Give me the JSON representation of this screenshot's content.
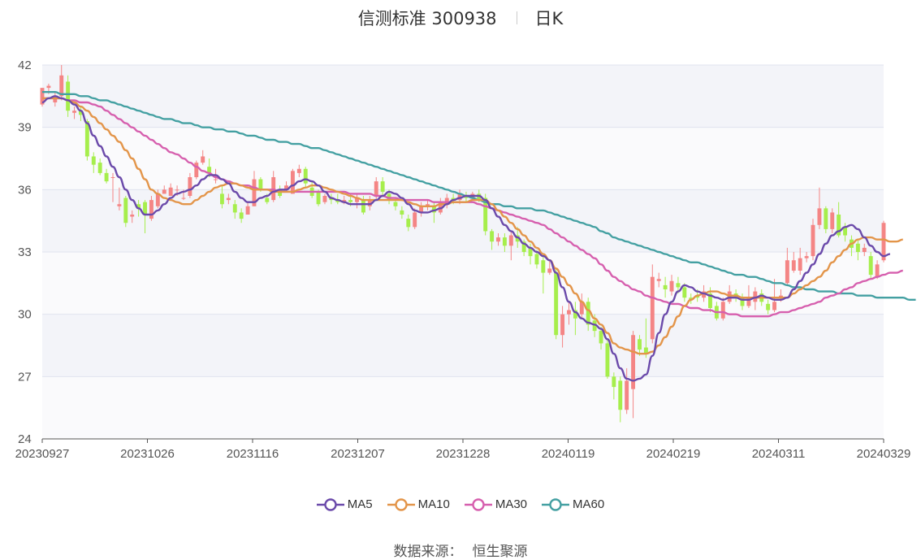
{
  "header": {
    "title": "信测标准 300938",
    "period": "日K"
  },
  "source": {
    "label": "数据来源：",
    "value": "恒生聚源"
  },
  "colors": {
    "up": "#f48585",
    "down": "#a6ee4c",
    "ma5": "#6b4aaa",
    "ma10": "#e3954a",
    "ma30": "#d65fae",
    "ma60": "#44a0a2"
  },
  "chart_data": {
    "type": "candlestick",
    "ylim": [
      24,
      42
    ],
    "y_ticks": [
      24,
      27,
      30,
      33,
      36,
      39,
      42
    ],
    "x_tick_labels": [
      "20230927",
      "20231026",
      "20231116",
      "20231207",
      "20231228",
      "20240119",
      "20240219",
      "20240311",
      "20240329"
    ],
    "legend": [
      "MA5",
      "MA10",
      "MA30",
      "MA60"
    ],
    "legend_position": "bottom",
    "candles": [
      [
        40.1,
        40.9,
        40.7,
        40.0
      ],
      [
        40.9,
        41.0,
        41.1,
        40.6
      ],
      [
        40.2,
        40.5,
        40.7,
        40.0
      ],
      [
        40.5,
        41.5,
        42.0,
        40.3
      ],
      [
        41.2,
        39.8,
        41.5,
        39.5
      ],
      [
        39.7,
        39.8,
        40.0,
        39.4
      ],
      [
        39.8,
        39.6,
        40.0,
        39.3
      ],
      [
        39.3,
        37.6,
        39.4,
        37.4
      ],
      [
        37.6,
        37.2,
        37.8,
        36.8
      ],
      [
        37.3,
        36.8,
        37.5,
        36.7
      ],
      [
        36.8,
        36.4,
        37.0,
        36.3
      ],
      [
        36.6,
        36.6,
        36.8,
        35.4
      ],
      [
        35.2,
        35.3,
        36.1,
        35.0
      ],
      [
        35.6,
        34.4,
        35.7,
        34.2
      ],
      [
        34.7,
        34.8,
        35.0,
        34.4
      ],
      [
        35.3,
        35.1,
        35.5,
        34.7
      ],
      [
        35.4,
        34.8,
        35.5,
        33.9
      ],
      [
        34.6,
        35.5,
        35.7,
        34.5
      ],
      [
        35.2,
        35.8,
        36.0,
        35.1
      ],
      [
        35.8,
        36.0,
        36.2,
        35.8
      ],
      [
        35.7,
        36.1,
        36.3,
        35.7
      ],
      [
        36.0,
        36.0,
        36.2,
        35.7
      ],
      [
        35.6,
        35.6,
        36.0,
        35.5
      ],
      [
        35.7,
        36.6,
        36.8,
        35.6
      ],
      [
        36.6,
        37.3,
        37.4,
        36.5
      ],
      [
        37.3,
        37.6,
        37.9,
        37.2
      ],
      [
        37.1,
        36.8,
        37.5,
        36.6
      ],
      [
        36.5,
        36.5,
        37.0,
        36.3
      ],
      [
        35.8,
        35.3,
        36.2,
        35.1
      ],
      [
        35.5,
        35.6,
        35.8,
        35.3
      ],
      [
        35.3,
        34.9,
        35.5,
        34.6
      ],
      [
        34.9,
        34.6,
        35.1,
        34.4
      ],
      [
        34.8,
        35.2,
        35.4,
        34.8
      ],
      [
        35.2,
        36.5,
        36.9,
        35.2
      ],
      [
        36.5,
        36.0,
        36.6,
        35.9
      ],
      [
        35.6,
        35.4,
        35.8,
        35.3
      ],
      [
        35.5,
        36.6,
        36.9,
        35.4
      ],
      [
        36.0,
        35.7,
        36.2,
        35.6
      ],
      [
        36.0,
        36.2,
        36.4,
        35.9
      ],
      [
        35.8,
        36.9,
        37.0,
        35.8
      ],
      [
        36.8,
        37.0,
        37.2,
        36.6
      ],
      [
        37.0,
        36.3,
        37.1,
        36.1
      ],
      [
        36.1,
        35.7,
        36.4,
        35.6
      ],
      [
        35.9,
        35.3,
        36.0,
        35.2
      ],
      [
        35.4,
        35.7,
        35.8,
        35.3
      ],
      [
        35.6,
        35.5,
        35.8,
        35.3
      ],
      [
        35.5,
        35.4,
        35.8,
        35.3
      ],
      [
        35.4,
        35.5,
        35.7,
        35.3
      ],
      [
        35.5,
        35.4,
        35.8,
        35.2
      ],
      [
        35.4,
        35.6,
        35.8,
        35.1
      ],
      [
        35.5,
        34.9,
        35.7,
        34.8
      ],
      [
        35.2,
        35.5,
        35.7,
        35.0
      ],
      [
        35.7,
        36.4,
        36.6,
        35.5
      ],
      [
        36.4,
        35.9,
        36.6,
        35.7
      ],
      [
        35.8,
        35.5,
        36.0,
        35.3
      ],
      [
        35.4,
        35.2,
        35.6,
        35.0
      ],
      [
        35.0,
        34.8,
        35.2,
        34.6
      ],
      [
        34.6,
        34.2,
        34.8,
        34.0
      ],
      [
        34.2,
        34.9,
        35.1,
        34.1
      ],
      [
        34.9,
        35.2,
        35.4,
        34.7
      ],
      [
        35.2,
        35.3,
        35.5,
        35.0
      ],
      [
        35.2,
        34.9,
        35.4,
        34.4
      ],
      [
        34.9,
        35.4,
        35.6,
        34.8
      ],
      [
        35.3,
        35.6,
        35.8,
        35.1
      ],
      [
        35.6,
        35.5,
        35.8,
        35.3
      ],
      [
        35.5,
        35.8,
        36.0,
        35.3
      ],
      [
        35.7,
        35.6,
        35.9,
        35.4
      ],
      [
        35.6,
        35.8,
        35.9,
        35.5
      ],
      [
        35.8,
        35.5,
        36.0,
        35.4
      ],
      [
        35.6,
        34.0,
        35.8,
        33.8
      ],
      [
        34.0,
        33.5,
        34.1,
        33.1
      ],
      [
        33.5,
        33.7,
        33.9,
        33.3
      ],
      [
        33.7,
        33.3,
        33.9,
        33.0
      ],
      [
        33.3,
        33.8,
        34.0,
        32.6
      ],
      [
        33.8,
        33.5,
        34.2,
        33.2
      ],
      [
        33.5,
        33.0,
        33.6,
        32.8
      ],
      [
        33.2,
        32.8,
        33.4,
        32.4
      ],
      [
        32.9,
        32.4,
        33.1,
        32.2
      ],
      [
        32.6,
        32.0,
        32.8,
        31.0
      ],
      [
        32.0,
        32.2,
        32.6,
        31.9
      ],
      [
        32.0,
        29.0,
        32.2,
        28.8
      ],
      [
        29.0,
        30.0,
        30.4,
        28.4
      ],
      [
        30.0,
        30.2,
        30.6,
        29.5
      ],
      [
        30.2,
        29.8,
        30.6,
        29.0
      ],
      [
        30.0,
        30.6,
        31.0,
        29.8
      ],
      [
        30.6,
        29.5,
        30.8,
        29.2
      ],
      [
        29.7,
        29.2,
        30.0,
        28.9
      ],
      [
        29.2,
        28.6,
        29.4,
        28.3
      ],
      [
        28.6,
        27.0,
        28.8,
        26.9
      ],
      [
        27.0,
        26.5,
        27.2,
        25.9
      ],
      [
        26.8,
        25.4,
        27.0,
        24.8
      ],
      [
        25.4,
        26.8,
        27.4,
        25.2
      ],
      [
        26.4,
        29.0,
        29.2,
        25.0
      ],
      [
        28.8,
        28.3,
        29.0,
        28.0
      ],
      [
        28.4,
        28.1,
        29.8,
        27.9
      ],
      [
        28.8,
        31.8,
        32.4,
        28.6
      ],
      [
        31.6,
        31.7,
        32.0,
        31.3
      ],
      [
        31.4,
        31.2,
        31.8,
        30.8
      ],
      [
        31.1,
        31.6,
        31.9,
        30.9
      ],
      [
        31.5,
        31.3,
        31.8,
        31.0
      ],
      [
        31.3,
        30.8,
        31.5,
        30.6
      ],
      [
        30.8,
        30.7,
        31.0,
        30.5
      ],
      [
        30.9,
        30.8,
        31.2,
        30.6
      ],
      [
        30.8,
        31.1,
        31.4,
        30.6
      ],
      [
        31.0,
        30.3,
        31.3,
        30.1
      ],
      [
        30.4,
        29.8,
        30.6,
        29.7
      ],
      [
        29.8,
        30.6,
        30.8,
        29.7
      ],
      [
        30.6,
        31.1,
        31.4,
        30.5
      ],
      [
        31.0,
        30.8,
        31.2,
        30.6
      ],
      [
        30.8,
        30.4,
        31.0,
        30.2
      ],
      [
        30.4,
        30.8,
        31.4,
        30.3
      ],
      [
        30.6,
        31.1,
        31.3,
        30.2
      ],
      [
        31.0,
        30.6,
        31.2,
        30.4
      ],
      [
        30.5,
        30.2,
        30.7,
        30.0
      ],
      [
        30.2,
        30.6,
        31.7,
        30.1
      ],
      [
        30.8,
        30.9,
        31.2,
        30.6
      ],
      [
        31.5,
        32.6,
        33.2,
        31.4
      ],
      [
        32.1,
        32.6,
        33.0,
        32.0
      ],
      [
        32.1,
        32.7,
        33.2,
        31.9
      ],
      [
        32.7,
        32.8,
        33.0,
        32.5
      ],
      [
        32.8,
        34.3,
        34.6,
        32.6
      ],
      [
        34.3,
        35.1,
        36.1,
        34.1
      ],
      [
        35.1,
        34.1,
        35.2,
        33.9
      ],
      [
        34.1,
        34.9,
        35.1,
        33.9
      ],
      [
        34.8,
        33.8,
        35.4,
        33.7
      ],
      [
        34.2,
        33.8,
        34.4,
        33.5
      ],
      [
        33.6,
        33.2,
        33.8,
        32.8
      ],
      [
        33.4,
        33.0,
        33.6,
        32.6
      ],
      [
        33.0,
        33.2,
        33.4,
        32.8
      ],
      [
        32.8,
        31.9,
        33.0,
        31.7
      ],
      [
        31.8,
        32.4,
        32.6,
        31.7
      ],
      [
        32.6,
        34.4,
        34.5,
        32.5
      ]
    ],
    "ma5": [
      40.2,
      40.4,
      40.5,
      40.4,
      40.3,
      40.1,
      39.8,
      39.2,
      38.6,
      38.1,
      37.6,
      37.1,
      36.6,
      36.0,
      35.5,
      35.1,
      34.8,
      34.8,
      35.0,
      35.3,
      35.6,
      35.8,
      35.9,
      36.0,
      36.2,
      36.5,
      36.7,
      36.7,
      36.5,
      36.3,
      35.9,
      35.6,
      35.4,
      35.4,
      35.6,
      35.7,
      35.9,
      36.0,
      36.0,
      36.2,
      36.4,
      36.5,
      36.4,
      36.2,
      35.9,
      35.6,
      35.5,
      35.4,
      35.3,
      35.3,
      35.3,
      35.3,
      35.5,
      35.7,
      35.9,
      35.8,
      35.6,
      35.3,
      35.0,
      34.9,
      34.9,
      35.0,
      35.1,
      35.3,
      35.5,
      35.6,
      35.7,
      35.7,
      35.7,
      35.5,
      35.1,
      34.7,
      34.3,
      34.0,
      33.7,
      33.4,
      33.2,
      33.0,
      32.8,
      32.6,
      32.0,
      31.3,
      30.6,
      30.1,
      29.8,
      29.6,
      29.5,
      29.3,
      28.8,
      28.1,
      27.4,
      26.9,
      26.8,
      26.9,
      27.1,
      28.0,
      29.1,
      30.0,
      30.6,
      31.1,
      31.4,
      31.3,
      31.1,
      31.0,
      30.9,
      30.8,
      30.7,
      30.8,
      30.8,
      30.7,
      30.7,
      30.8,
      30.9,
      30.8,
      30.7,
      30.7,
      30.8,
      31.2,
      31.6,
      32.0,
      32.4,
      32.9,
      33.4,
      33.8,
      34.0,
      34.2,
      34.3,
      34.1,
      33.7,
      33.3,
      33.0,
      32.8,
      32.9
    ],
    "ma10": [
      40.4,
      40.4,
      40.4,
      40.4,
      40.3,
      40.2,
      40.0,
      39.8,
      39.5,
      39.2,
      38.9,
      38.6,
      38.3,
      37.9,
      37.5,
      37.0,
      36.5,
      36.0,
      35.8,
      35.6,
      35.5,
      35.4,
      35.3,
      35.3,
      35.5,
      35.7,
      35.9,
      36.1,
      36.2,
      36.3,
      36.3,
      36.2,
      36.1,
      36.0,
      36.0,
      36.0,
      35.9,
      35.9,
      35.9,
      35.9,
      36.0,
      36.1,
      36.2,
      36.2,
      36.1,
      36.0,
      35.9,
      35.8,
      35.7,
      35.6,
      35.5,
      35.5,
      35.5,
      35.5,
      35.5,
      35.5,
      35.5,
      35.4,
      35.3,
      35.2,
      35.2,
      35.2,
      35.3,
      35.3,
      35.4,
      35.4,
      35.4,
      35.5,
      35.5,
      35.5,
      35.3,
      35.0,
      34.7,
      34.4,
      34.1,
      33.8,
      33.5,
      33.2,
      32.9,
      32.6,
      32.2,
      31.8,
      31.4,
      31.0,
      30.6,
      30.2,
      29.8,
      29.5,
      29.1,
      28.6,
      28.4,
      28.3,
      28.2,
      28.1,
      28.1,
      28.2,
      28.5,
      28.9,
      29.4,
      29.9,
      30.4,
      30.7,
      30.9,
      31.0,
      31.1,
      31.1,
      31.0,
      30.9,
      30.9,
      30.8,
      30.8,
      30.8,
      30.8,
      30.8,
      30.8,
      30.8,
      30.8,
      31.0,
      31.2,
      31.4,
      31.6,
      31.8,
      32.1,
      32.5,
      32.8,
      33.1,
      33.4,
      33.6,
      33.7,
      33.7,
      33.6,
      33.6,
      33.5,
      33.5,
      33.6
    ],
    "ma30": [
      40.4,
      40.4,
      40.4,
      40.4,
      40.3,
      40.3,
      40.2,
      40.2,
      40.1,
      40.0,
      39.8,
      39.6,
      39.4,
      39.2,
      39.0,
      38.8,
      38.6,
      38.4,
      38.2,
      38.0,
      37.8,
      37.7,
      37.5,
      37.3,
      37.1,
      36.9,
      36.8,
      36.6,
      36.5,
      36.4,
      36.3,
      36.2,
      36.2,
      36.1,
      36.0,
      36.0,
      36.0,
      35.9,
      35.9,
      35.9,
      35.9,
      35.9,
      35.9,
      35.9,
      35.9,
      35.9,
      35.9,
      35.9,
      35.8,
      35.8,
      35.8,
      35.8,
      35.7,
      35.7,
      35.6,
      35.6,
      35.5,
      35.5,
      35.5,
      35.5,
      35.5,
      35.4,
      35.4,
      35.4,
      35.4,
      35.4,
      35.4,
      35.4,
      35.3,
      35.2,
      35.1,
      35.0,
      34.9,
      34.8,
      34.7,
      34.6,
      34.5,
      34.4,
      34.3,
      34.1,
      33.9,
      33.7,
      33.5,
      33.3,
      33.1,
      32.9,
      32.7,
      32.4,
      32.1,
      31.8,
      31.6,
      31.4,
      31.2,
      31.1,
      30.9,
      30.8,
      30.7,
      30.6,
      30.5,
      30.5,
      30.4,
      30.3,
      30.3,
      30.2,
      30.2,
      30.1,
      30.1,
      30.0,
      30.0,
      29.9,
      29.9,
      29.9,
      29.9,
      29.9,
      30.0,
      30.1,
      30.1,
      30.2,
      30.3,
      30.4,
      30.5,
      30.6,
      30.8,
      30.9,
      31.0,
      31.2,
      31.3,
      31.5,
      31.6,
      31.7,
      31.8,
      31.9,
      32.0,
      32.0,
      32.1
    ],
    "ma60": [
      40.7,
      40.7,
      40.7,
      40.6,
      40.6,
      40.6,
      40.5,
      40.5,
      40.4,
      40.3,
      40.3,
      40.2,
      40.1,
      40.0,
      39.9,
      39.8,
      39.7,
      39.6,
      39.5,
      39.4,
      39.4,
      39.3,
      39.2,
      39.2,
      39.1,
      39.0,
      39.0,
      38.9,
      38.9,
      38.8,
      38.8,
      38.7,
      38.6,
      38.6,
      38.5,
      38.4,
      38.4,
      38.3,
      38.3,
      38.2,
      38.2,
      38.1,
      38.0,
      38.0,
      37.9,
      37.8,
      37.7,
      37.6,
      37.5,
      37.4,
      37.3,
      37.2,
      37.1,
      37.0,
      36.9,
      36.8,
      36.7,
      36.6,
      36.5,
      36.4,
      36.3,
      36.2,
      36.1,
      36.0,
      35.9,
      35.8,
      35.7,
      35.6,
      35.5,
      35.4,
      35.3,
      35.3,
      35.2,
      35.2,
      35.1,
      35.1,
      35.1,
      35.0,
      35.0,
      34.9,
      34.8,
      34.7,
      34.6,
      34.5,
      34.4,
      34.3,
      34.2,
      34.0,
      33.9,
      33.7,
      33.6,
      33.5,
      33.4,
      33.3,
      33.2,
      33.1,
      33.0,
      32.9,
      32.8,
      32.7,
      32.6,
      32.5,
      32.5,
      32.4,
      32.3,
      32.2,
      32.1,
      32.0,
      31.9,
      31.9,
      31.8,
      31.8,
      31.7,
      31.6,
      31.5,
      31.5,
      31.4,
      31.3,
      31.3,
      31.2,
      31.2,
      31.1,
      31.1,
      31.1,
      31.0,
      31.0,
      31.0,
      30.9,
      30.9,
      30.9,
      30.8,
      30.8,
      30.8,
      30.8,
      30.8,
      30.7,
      30.7
    ]
  }
}
